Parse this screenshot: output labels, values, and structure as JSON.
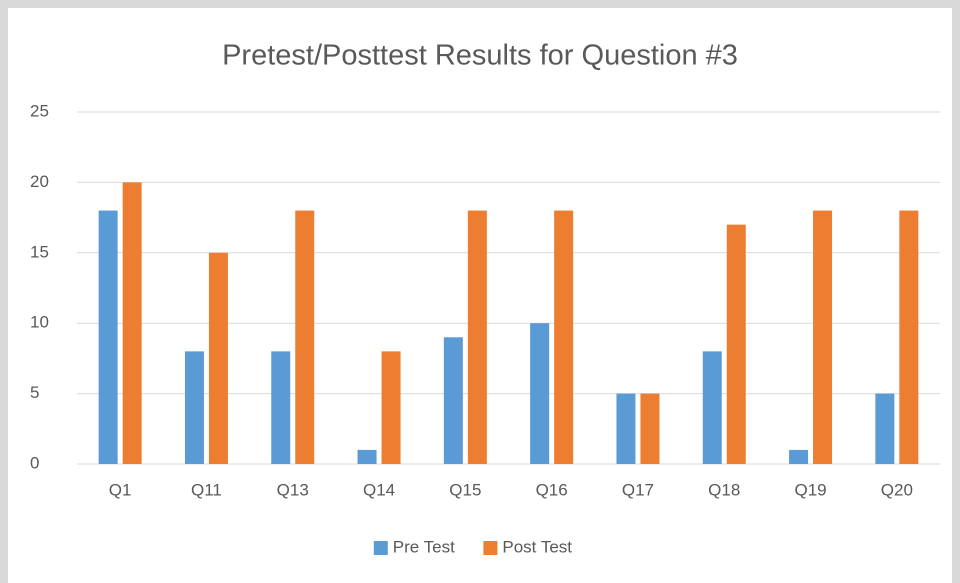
{
  "chart_data": {
    "type": "bar",
    "title": "Pretest/Posttest Results for Question #3",
    "categories": [
      "Q1",
      "Q11",
      "Q13",
      "Q14",
      "Q15",
      "Q16",
      "Q17",
      "Q18",
      "Q19",
      "Q20"
    ],
    "series": [
      {
        "name": "Pre Test",
        "color": "#5b9bd5",
        "values": [
          18,
          8,
          8,
          1,
          9,
          10,
          5,
          8,
          1,
          5
        ]
      },
      {
        "name": "Post Test",
        "color": "#ed7d31",
        "values": [
          20,
          15,
          18,
          8,
          18,
          18,
          5,
          17,
          18,
          18
        ]
      }
    ],
    "ylim": [
      0,
      25
    ],
    "yticks": [
      0,
      5,
      10,
      15,
      20,
      25
    ],
    "grid": true,
    "legend": "bottom"
  }
}
